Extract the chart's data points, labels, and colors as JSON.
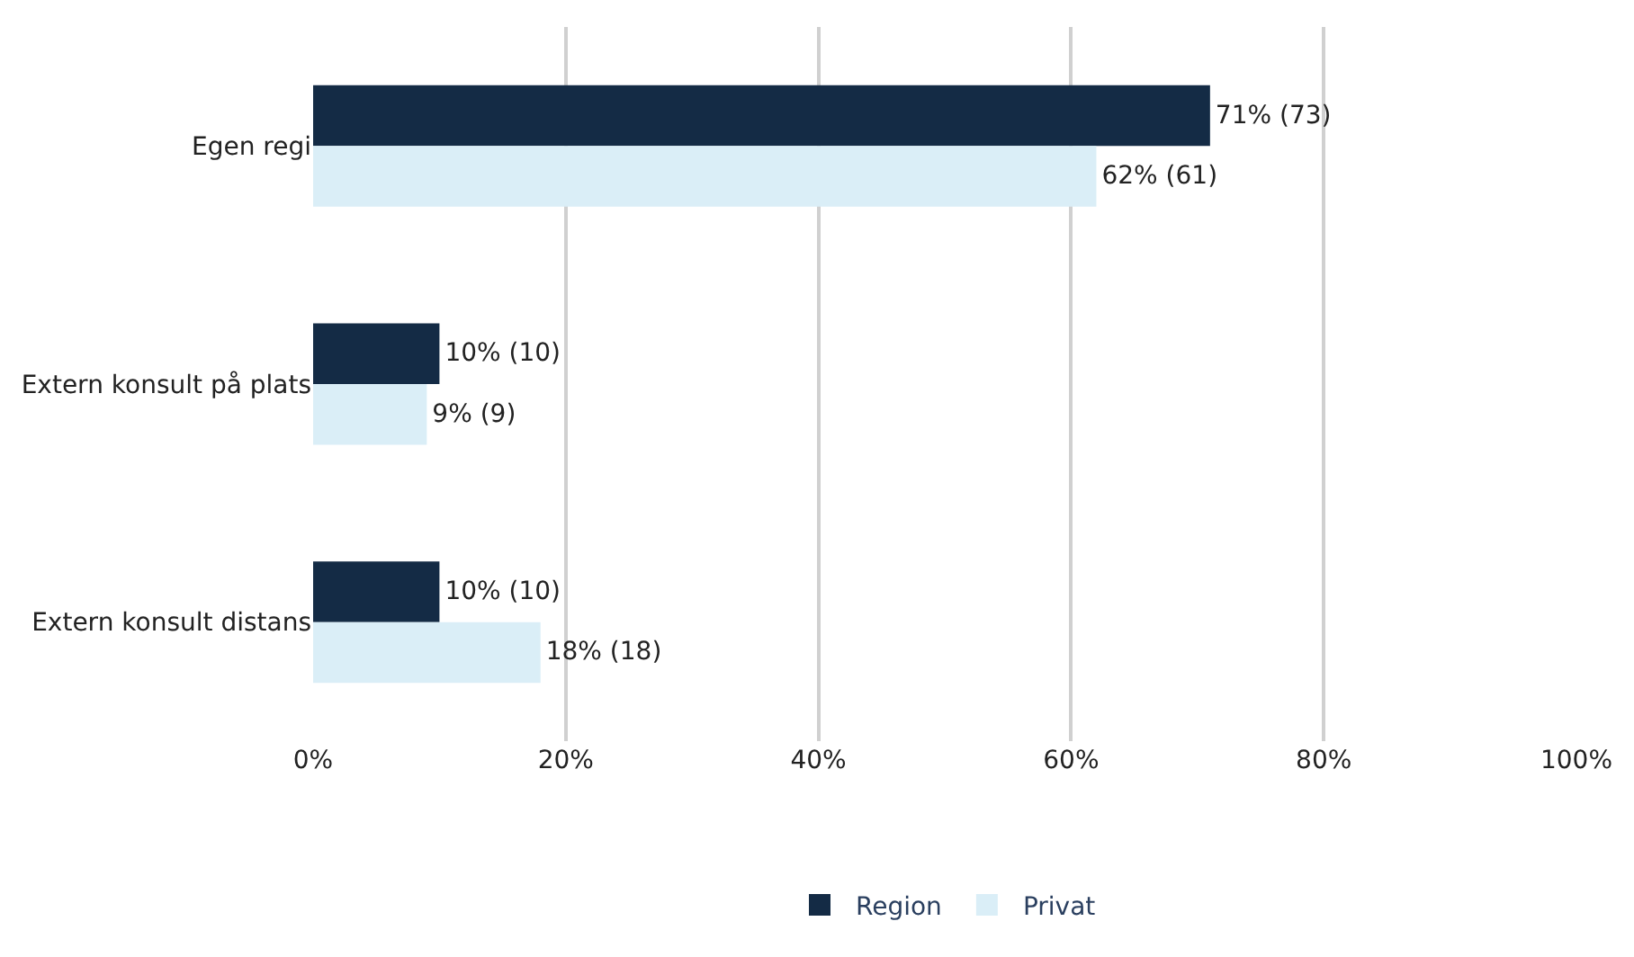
{
  "chart_data": {
    "type": "bar",
    "orientation": "horizontal",
    "categories": [
      "Egen regi",
      "Extern konsult på plats",
      "Extern konsult distans"
    ],
    "series": [
      {
        "name": "Region",
        "color": "#142b45",
        "values": [
          71,
          10,
          10
        ],
        "value_labels": [
          "71% (73)",
          "10% (10)",
          "10% (10)"
        ]
      },
      {
        "name": "Privat",
        "color": "#daeef7",
        "values": [
          62,
          9,
          18
        ],
        "value_labels": [
          "62% (61)",
          "9% (9)",
          "18% (18)"
        ]
      }
    ],
    "xlim": [
      0,
      100
    ],
    "xticks": [
      {
        "value": 0,
        "label": "0%"
      },
      {
        "value": 20,
        "label": "20%"
      },
      {
        "value": 40,
        "label": "40%"
      },
      {
        "value": 60,
        "label": "60%"
      },
      {
        "value": 80,
        "label": "80%"
      },
      {
        "value": 100,
        "label": "100%"
      }
    ],
    "grid": "x",
    "legend": "bottom"
  }
}
